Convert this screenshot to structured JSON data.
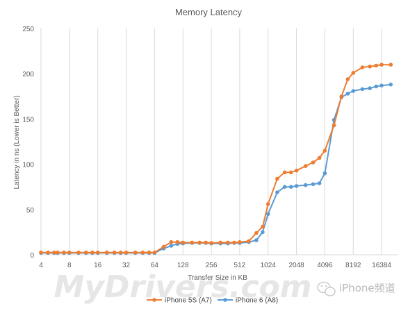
{
  "chart_data": {
    "type": "line",
    "title": "Memory  Latency",
    "xlabel": "Transfer Size in KB",
    "ylabel": "Latency in ns (Lower is Better)",
    "ylim": [
      0,
      250
    ],
    "yticks": [
      0,
      50,
      100,
      150,
      200,
      250
    ],
    "xscale": "log2",
    "xlim": [
      4,
      24576
    ],
    "xticks": [
      4,
      8,
      16,
      32,
      64,
      128,
      256,
      512,
      1024,
      2048,
      4096,
      8192,
      16384
    ],
    "grid": "vertical",
    "legend": "bottom",
    "x": [
      4,
      4.75,
      5.5,
      6,
      7,
      8,
      10,
      12,
      14,
      16,
      20,
      24,
      28,
      32,
      40,
      48,
      56,
      64,
      80,
      96,
      112,
      128,
      160,
      192,
      224,
      256,
      320,
      384,
      448,
      512,
      640,
      768,
      896,
      1024,
      1280,
      1536,
      1792,
      2048,
      2560,
      3072,
      3584,
      4096,
      5120,
      6144,
      7168,
      8192,
      10240,
      12288,
      14336,
      16384,
      20480
    ],
    "series": [
      {
        "name": "iPhone 5S (A7)",
        "color": "#ED7D31",
        "values": [
          2.5,
          2.5,
          2.5,
          2.5,
          2.5,
          2.5,
          2.5,
          2.5,
          2.5,
          2.5,
          2.5,
          2.5,
          2.5,
          2.5,
          2.5,
          2.5,
          2.5,
          2.5,
          9,
          14,
          14,
          13.5,
          13.5,
          13.5,
          13.5,
          13,
          13.5,
          13.5,
          13.5,
          14,
          15,
          24,
          31,
          56,
          84,
          91,
          91,
          93,
          98,
          102,
          107,
          115,
          143,
          175,
          194,
          201,
          207,
          208,
          209,
          210,
          210
        ]
      },
      {
        "name": "iPhone 6 (A8)",
        "color": "#5B9BD5",
        "values": [
          2,
          2,
          2,
          2,
          2,
          2,
          2,
          2,
          2,
          2,
          2,
          2,
          2,
          2,
          2,
          2,
          2,
          2,
          7,
          10,
          12,
          12.5,
          13,
          13,
          13,
          12.5,
          12.5,
          12.5,
          13,
          13,
          14,
          16,
          25,
          45,
          69,
          75,
          75,
          76,
          77,
          78,
          79,
          90,
          149,
          174,
          178,
          181,
          183,
          184,
          186,
          187,
          188
        ]
      }
    ]
  },
  "watermark": {
    "main": "MyDrivers.com",
    "badge": "iPhone频道"
  }
}
